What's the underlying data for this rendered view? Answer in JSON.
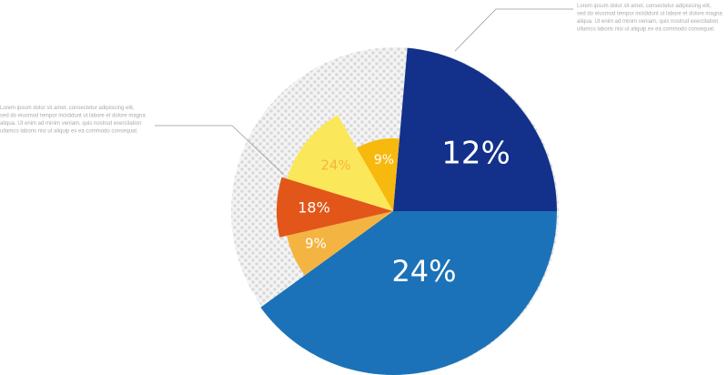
{
  "segments": [
    {
      "label": "12%"
    },
    {
      "label": "24%"
    },
    {
      "label": "9%"
    },
    {
      "label": "18%"
    },
    {
      "label": "24%"
    },
    {
      "label": "9%"
    }
  ],
  "notes": [
    {
      "lines": [
        "Lorem ipsum dolor sit amet, consectetur adipisicing elit,",
        "sed do eiusmod tempor incididunt ut labore et dolore magna",
        "aliqua. Ut enim ad minim veniam, quis nostrud exercitation",
        "ullamco laboris nisi ut aliquip ex ea commodo consequat."
      ]
    },
    {
      "lines": [
        "Lorem ipsum dolor sit amet, consectetur adipisicing elit,",
        "sed do eiusmod tempor incididunt ut labore et dolore magna",
        "aliqua. Ut enim ad minim veniam, quis nostrud exercitation",
        "ullamco laboris nisi ut aliquip ex ea commodo consequat."
      ]
    }
  ]
}
